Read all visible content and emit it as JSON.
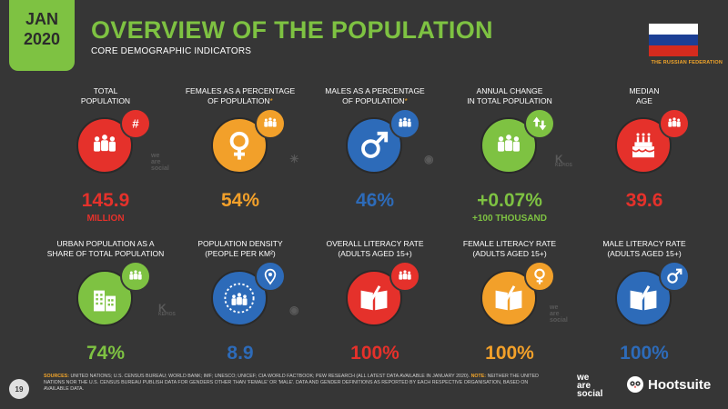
{
  "header": {
    "month": "JAN",
    "year": "2020",
    "title": "OVERVIEW OF THE POPULATION",
    "subtitle": "CORE DEMOGRAPHIC INDICATORS",
    "country": "THE RUSSIAN FEDERATION"
  },
  "colors": {
    "red": "#e5312b",
    "orange": "#f2a02a",
    "blue": "#2d6bb9",
    "green": "#7ec242",
    "background": "#363636"
  },
  "stats": [
    {
      "label1": "TOTAL",
      "label2": "POPULATION",
      "asterisk": "",
      "value": "145.9",
      "sub": "MILLION",
      "color": "red",
      "icon": "people-icon",
      "badge": "hash-icon"
    },
    {
      "label1": "FEMALES AS A PERCENTAGE",
      "label2": "OF POPULATION",
      "asterisk": "*",
      "value": "54%",
      "sub": "",
      "color": "orange",
      "icon": "female-symbol-icon",
      "badge": "people-icon"
    },
    {
      "label1": "MALES AS A PERCENTAGE",
      "label2": "OF POPULATION",
      "asterisk": "*",
      "value": "46%",
      "sub": "",
      "color": "blue",
      "icon": "male-symbol-icon",
      "badge": "people-icon"
    },
    {
      "label1": "ANNUAL CHANGE",
      "label2": "IN TOTAL POPULATION",
      "asterisk": "",
      "value": "+0.07%",
      "sub": "+100 THOUSAND",
      "color": "green",
      "icon": "people-icon",
      "badge": "up-down-arrows-icon"
    },
    {
      "label1": "MEDIAN",
      "label2": "AGE",
      "asterisk": "",
      "value": "39.6",
      "sub": "",
      "color": "red",
      "icon": "birthday-cake-icon",
      "badge": "people-icon"
    },
    {
      "label1": "URBAN POPULATION AS A",
      "label2": "SHARE OF TOTAL POPULATION",
      "asterisk": "",
      "value": "74%",
      "sub": "",
      "color": "green",
      "icon": "city-buildings-icon",
      "badge": "people-icon"
    },
    {
      "label1": "POPULATION DENSITY",
      "label2": "(PEOPLE PER KM²)",
      "asterisk": "",
      "value": "8.9",
      "sub": "",
      "color": "blue",
      "icon": "crowd-icon",
      "badge": "location-pin-icon"
    },
    {
      "label1": "OVERALL LITERACY RATE",
      "label2": "(ADULTS AGED 15+)",
      "asterisk": "",
      "value": "100%",
      "sub": "",
      "color": "red",
      "icon": "open-book-icon",
      "badge": "people-icon"
    },
    {
      "label1": "FEMALE LITERACY RATE",
      "label2": "(ADULTS AGED 15+)",
      "asterisk": "",
      "value": "100%",
      "sub": "",
      "color": "orange",
      "icon": "open-book-icon",
      "badge": "female-symbol-icon"
    },
    {
      "label1": "MALE LITERACY RATE",
      "label2": "(ADULTS AGED 15+)",
      "asterisk": "",
      "value": "100%",
      "sub": "",
      "color": "blue",
      "icon": "open-book-icon",
      "badge": "male-symbol-icon"
    }
  ],
  "watermarks": {
    "we": "we",
    "are": "are",
    "social": "social",
    "kepios": "KEPIOS"
  },
  "footer": {
    "page_number": "19",
    "sources_heading": "SOURCES:",
    "sources_text": "UNITED NATIONS; U.S. CENSUS BUREAU; WORLD BANK; IMF; UNESCO; UNICEF; CIA WORLD FACTBOOK; PEW RESEARCH (ALL LATEST DATA AVAILABLE IN JANUARY 2020).",
    "note_heading": "NOTE:",
    "note_text": "NEITHER THE UNITED NATIONS NOR THE U.S. CENSUS BUREAU PUBLISH DATA FOR GENDERS OTHER THAN 'FEMALE' OR 'MALE'. DATA AND GENDER DEFINITIONS AS REPORTED BY EACH RESPECTIVE ORGANISATION, BASED ON AVAILABLE DATA.",
    "logo1_we": "we",
    "logo1_are": "are",
    "logo1_social": "social",
    "logo2": "Hootsuite"
  }
}
